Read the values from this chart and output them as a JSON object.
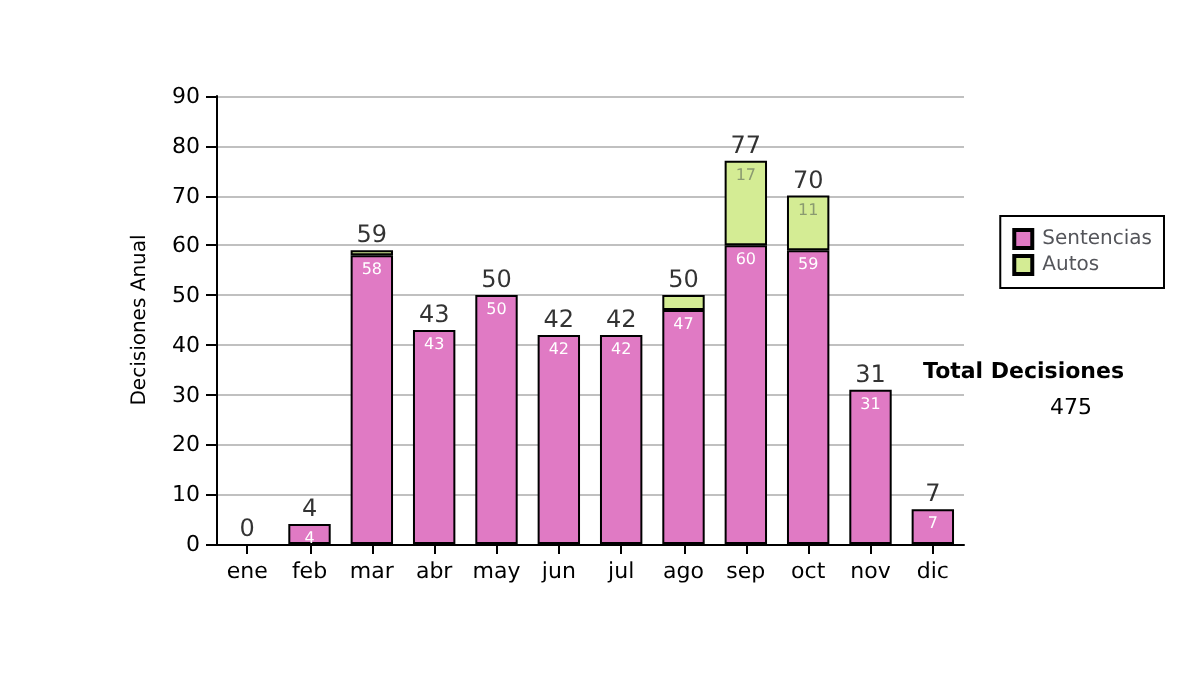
{
  "chart_data": {
    "type": "bar",
    "stacked": true,
    "ylabel": "Decisiones Anual",
    "categories": [
      "ene",
      "feb",
      "mar",
      "abr",
      "may",
      "jun",
      "jul",
      "ago",
      "sep",
      "oct",
      "nov",
      "dic"
    ],
    "series": [
      {
        "name": "Sentencias",
        "color": "#e07ac4",
        "values": [
          0,
          4,
          58,
          43,
          50,
          42,
          42,
          47,
          60,
          59,
          31,
          7
        ],
        "value_labels": [
          null,
          "4",
          "58",
          "43",
          "50",
          "42",
          "42",
          "47",
          "60",
          "59",
          "31",
          "7"
        ]
      },
      {
        "name": "Autos",
        "color": "#d4ec94",
        "values": [
          0,
          0,
          1,
          0,
          0,
          0,
          0,
          3,
          17,
          11,
          0,
          0
        ],
        "value_labels": [
          null,
          null,
          null,
          null,
          null,
          null,
          null,
          null,
          "17",
          "11",
          null,
          null
        ]
      }
    ],
    "totals": [
      "0",
      "4",
      "59",
      "43",
      "50",
      "42",
      "42",
      "50",
      "77",
      "70",
      "31",
      "7"
    ],
    "ylim": [
      0,
      90
    ],
    "yticks": [
      0,
      10,
      20,
      30,
      40,
      50,
      60,
      70,
      80,
      90
    ],
    "grid": "y",
    "legend": "right",
    "annotations": [
      "Total Decisiones",
      "475"
    ]
  }
}
